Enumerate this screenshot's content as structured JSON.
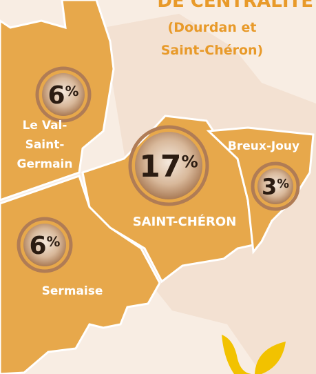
{
  "header": {
    "title": "DE CENTRALITÉ",
    "subtitle_lines": [
      "(Dourdan et",
      "Saint-Chéron)"
    ]
  },
  "regions": [
    {
      "name_lines": [
        "Le Val-",
        "Saint-",
        "Germain"
      ],
      "value": 6,
      "unit": "%"
    },
    {
      "name_lines": [
        "SAINT-CHÉRON"
      ],
      "value": 17,
      "unit": "%"
    },
    {
      "name_lines": [
        "Breux-Jouy"
      ],
      "value": 3,
      "unit": "%"
    },
    {
      "name_lines": [
        "Sermaise"
      ],
      "value": 6,
      "unit": "%"
    }
  ]
}
